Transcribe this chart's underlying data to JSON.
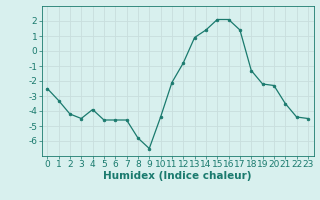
{
  "x": [
    0,
    1,
    2,
    3,
    4,
    5,
    6,
    7,
    8,
    9,
    10,
    11,
    12,
    13,
    14,
    15,
    16,
    17,
    18,
    19,
    20,
    21,
    22,
    23
  ],
  "y": [
    -2.5,
    -3.3,
    -4.2,
    -4.5,
    -3.9,
    -4.6,
    -4.6,
    -4.6,
    -5.8,
    -6.5,
    -4.4,
    -2.1,
    -0.8,
    0.9,
    1.4,
    2.1,
    2.1,
    1.4,
    -1.3,
    -2.2,
    -2.3,
    -3.5,
    -4.4,
    -4.5
  ],
  "line_color": "#1a7a6e",
  "marker": "o",
  "marker_size": 2.0,
  "bg_color": "#d8f0ee",
  "grid_color": "#c8dedd",
  "tick_color": "#1a7a6e",
  "label_color": "#1a7a6e",
  "xlabel": "Humidex (Indice chaleur)",
  "ylim": [
    -7,
    3
  ],
  "xlim": [
    -0.5,
    23.5
  ],
  "yticks": [
    -6,
    -5,
    -4,
    -3,
    -2,
    -1,
    0,
    1,
    2
  ],
  "xticks": [
    0,
    1,
    2,
    3,
    4,
    5,
    6,
    7,
    8,
    9,
    10,
    11,
    12,
    13,
    14,
    15,
    16,
    17,
    18,
    19,
    20,
    21,
    22,
    23
  ],
  "tick_fontsize": 6.5,
  "xlabel_fontsize": 7.5
}
